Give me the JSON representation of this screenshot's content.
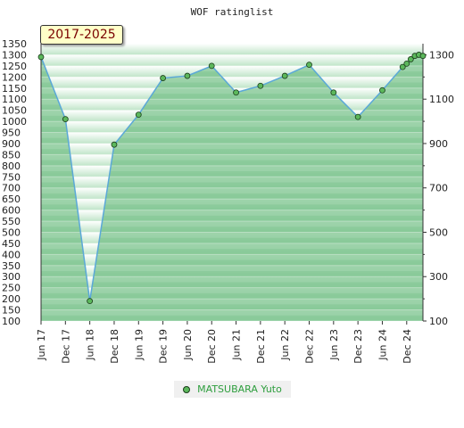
{
  "chart_data": {
    "type": "line",
    "title": "WOF ratinglist",
    "date_range_label": "2017-2025",
    "xlabel": "",
    "ylabel": "",
    "x_tick_labels": [
      "Jun 17",
      "Dec 17",
      "Jun 18",
      "Dec 18",
      "Jun 19",
      "Dec 19",
      "Jun 20",
      "Dec 20",
      "Jun 21",
      "Dec 21",
      "Jun 22",
      "Dec 22",
      "Jun 23",
      "Dec 23",
      "Jun 24",
      "Dec 24"
    ],
    "y_left_ticks": [
      100,
      150,
      200,
      250,
      300,
      350,
      400,
      450,
      500,
      550,
      600,
      650,
      700,
      750,
      800,
      850,
      900,
      950,
      1000,
      1050,
      1100,
      1150,
      1200,
      1250,
      1300,
      1350
    ],
    "y_right_ticks": [
      100,
      300,
      500,
      700,
      900,
      1100,
      1300
    ],
    "ylim": [
      100,
      1350
    ],
    "series": [
      {
        "name": "MATSUBARA Yuto",
        "color": "#5cb85c",
        "points": [
          {
            "x": "Jun 17",
            "y": 1290
          },
          {
            "x": "Dec 17",
            "y": 1010
          },
          {
            "x": "Jun 18",
            "y": 190
          },
          {
            "x": "Dec 18",
            "y": 895
          },
          {
            "x": "Jun 19",
            "y": 1030
          },
          {
            "x": "Dec 19",
            "y": 1195
          },
          {
            "x": "Jun 20",
            "y": 1205
          },
          {
            "x": "Dec 20",
            "y": 1250
          },
          {
            "x": "Jun 21",
            "y": 1130
          },
          {
            "x": "Dec 21",
            "y": 1160
          },
          {
            "x": "Jun 22",
            "y": 1205
          },
          {
            "x": "Dec 22",
            "y": 1255
          },
          {
            "x": "Jun 23",
            "y": 1130
          },
          {
            "x": "Dec 23",
            "y": 1020
          },
          {
            "x": "Jun 24",
            "y": 1140
          },
          {
            "x": "Nov 24",
            "y": 1245
          },
          {
            "x": "Dec 24",
            "y": 1260
          },
          {
            "x": "Jan 25",
            "y": 1280
          },
          {
            "x": "Feb 25",
            "y": 1295
          },
          {
            "x": "Mar 25",
            "y": 1300
          },
          {
            "x": "Apr 25",
            "y": 1295
          }
        ]
      }
    ],
    "grid": true,
    "legend_position": "bottom-center"
  },
  "colors": {
    "fill": "#7ec48f",
    "line": "#5ba8d8",
    "marker": "#5cb85c",
    "band_light": "#e4f4e8",
    "band_dark": "#9ed3aa"
  }
}
